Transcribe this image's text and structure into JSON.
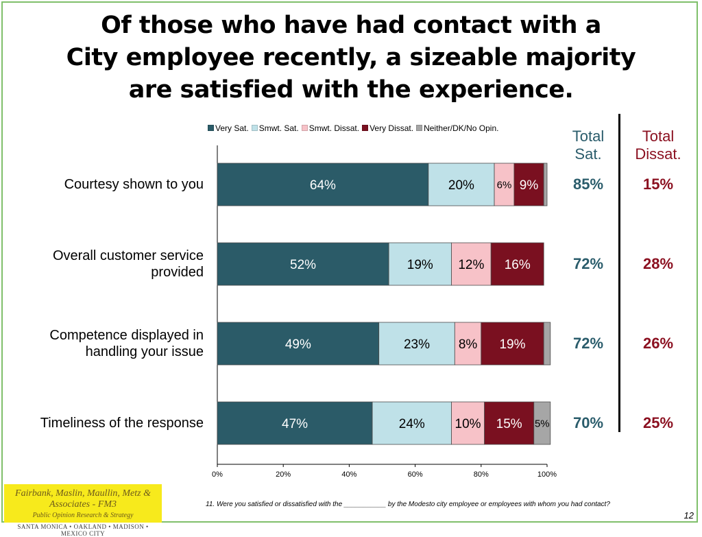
{
  "title_lines": [
    "Of those who have had contact with a",
    "City employee recently, a sizeable majority",
    "are satisfied with the experience."
  ],
  "column_headers": {
    "total_sat": [
      "Total",
      "Sat."
    ],
    "total_dissat": [
      "Total",
      "Dissat."
    ]
  },
  "colors": {
    "very_sat": "#2b5b68",
    "smwt_sat": "#bfe1e8",
    "smwt_dissat": "#f7c2c8",
    "very_dissat": "#7a1020",
    "neither": "#a6a6a6",
    "total_sat_text": "#2a5c6b",
    "total_dissat_text": "#8b1020",
    "frame": "#7fbf6a",
    "logo_bg": "#f7ea1c"
  },
  "chart_data": {
    "type": "bar",
    "orientation": "horizontal",
    "stacked": true,
    "categories": [
      "Courtesy shown to you",
      "Overall customer service provided",
      "Competence displayed in handling your issue",
      "Timeliness of the response"
    ],
    "category_lines": [
      [
        "Courtesy shown to you"
      ],
      [
        "Overall customer service",
        "provided"
      ],
      [
        "Competence displayed in",
        "handling your issue"
      ],
      [
        "Timeliness of the response"
      ]
    ],
    "series": [
      {
        "name": "Very Sat.",
        "values": [
          64,
          52,
          49,
          47
        ],
        "labels": [
          "64%",
          "52%",
          "49%",
          "47%"
        ]
      },
      {
        "name": "Smwt. Sat.",
        "values": [
          20,
          19,
          23,
          24
        ],
        "labels": [
          "20%",
          "19%",
          "23%",
          "24%"
        ]
      },
      {
        "name": "Smwt. Dissat.",
        "values": [
          6,
          12,
          8,
          10
        ],
        "labels": [
          "6%",
          "12%",
          "8%",
          "10%"
        ]
      },
      {
        "name": "Very Dissat.",
        "values": [
          9,
          16,
          19,
          15
        ],
        "labels": [
          "9%",
          "16%",
          "19%",
          "15%"
        ]
      },
      {
        "name": "Neither/DK/No Opin.",
        "values": [
          1,
          0,
          2,
          5
        ],
        "labels": [
          "",
          "",
          "",
          "5%"
        ]
      }
    ],
    "xlim": [
      0,
      100
    ],
    "xticks": [
      "0%",
      "20%",
      "40%",
      "60%",
      "80%",
      "100%"
    ],
    "legend_position": "top",
    "total_sat": [
      "85%",
      "72%",
      "72%",
      "70%"
    ],
    "total_dissat": [
      "15%",
      "28%",
      "26%",
      "25%"
    ]
  },
  "logo": {
    "line1": "Fairbank, Maslin, Maullin, Metz & Associates - FM3",
    "line2": "Public Opinion Research & Strategy",
    "line3": "SANTA MONICA • OAKLAND • MADISON • MEXICO CITY"
  },
  "footnote": "11. Were you satisfied or dissatisfied with the ___________ by the Modesto city employee or employees with whom you had contact?",
  "page_number": "12"
}
